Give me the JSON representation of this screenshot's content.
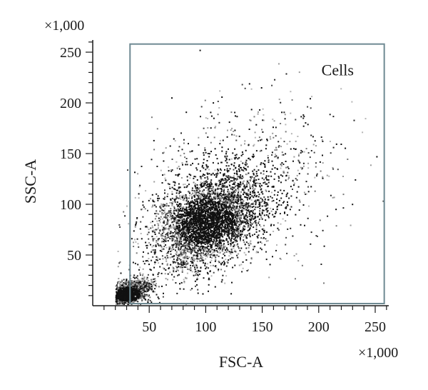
{
  "chart_data": {
    "type": "scatter",
    "subtype": "flow-cytometry-density-dot-plot",
    "xlabel": "FSC-A",
    "ylabel": "SSC-A",
    "x_multiplier": "×1,000",
    "y_multiplier": "×1,000",
    "xlim": [
      0,
      262
    ],
    "ylim": [
      0,
      262
    ],
    "x_ticks": [
      50,
      100,
      150,
      200,
      250
    ],
    "y_ticks": [
      50,
      100,
      150,
      200,
      250
    ],
    "x_minor_step": 10,
    "y_minor_step": 10,
    "point_color": "#111111",
    "gate": {
      "name": "Cells",
      "x_range": [
        33,
        258
      ],
      "y_range": [
        0,
        258
      ],
      "color": "#6f8a93"
    },
    "populations": [
      {
        "center": [
          100,
          82
        ],
        "spread": [
          22,
          20
        ],
        "density": 0.55
      },
      {
        "center": [
          30,
          12
        ],
        "spread": [
          10,
          6
        ],
        "density": 0.25
      },
      {
        "center": [
          120,
          110
        ],
        "spread": [
          45,
          40
        ],
        "density": 0.2
      }
    ]
  }
}
